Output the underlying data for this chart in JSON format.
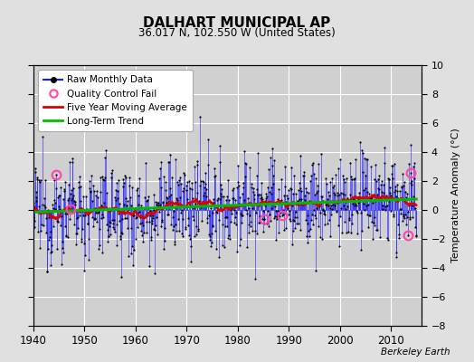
{
  "title": "DALHART MUNICIPAL AP",
  "subtitle": "36.017 N, 102.550 W (United States)",
  "ylabel_right": "Temperature Anomaly (°C)",
  "credit": "Berkeley Earth",
  "xlim": [
    1940,
    2016
  ],
  "ylim": [
    -8,
    10
  ],
  "yticks": [
    -8,
    -6,
    -4,
    -2,
    0,
    2,
    4,
    6,
    8,
    10
  ],
  "xticks": [
    1940,
    1950,
    1960,
    1970,
    1980,
    1990,
    2000,
    2010
  ],
  "bg_color": "#e0e0e0",
  "plot_bg_color": "#d0d0d0",
  "grid_color": "#ffffff",
  "raw_line_color": "#1a1aff",
  "raw_dot_color": "#000000",
  "ma_color": "#dd0000",
  "trend_color": "#00bb00",
  "qc_fail_color": "#ff44aa",
  "seed": 12345,
  "start_year": 1940.0,
  "end_year": 2014.9,
  "n_months": 900,
  "trend_slope": 0.012,
  "trend_intercept": -0.15,
  "ma_window": 60,
  "anomaly_std": 1.6,
  "qc_fail_times": [
    1944.5,
    1947.3,
    1985.2,
    1988.7,
    2013.2,
    2013.9
  ]
}
